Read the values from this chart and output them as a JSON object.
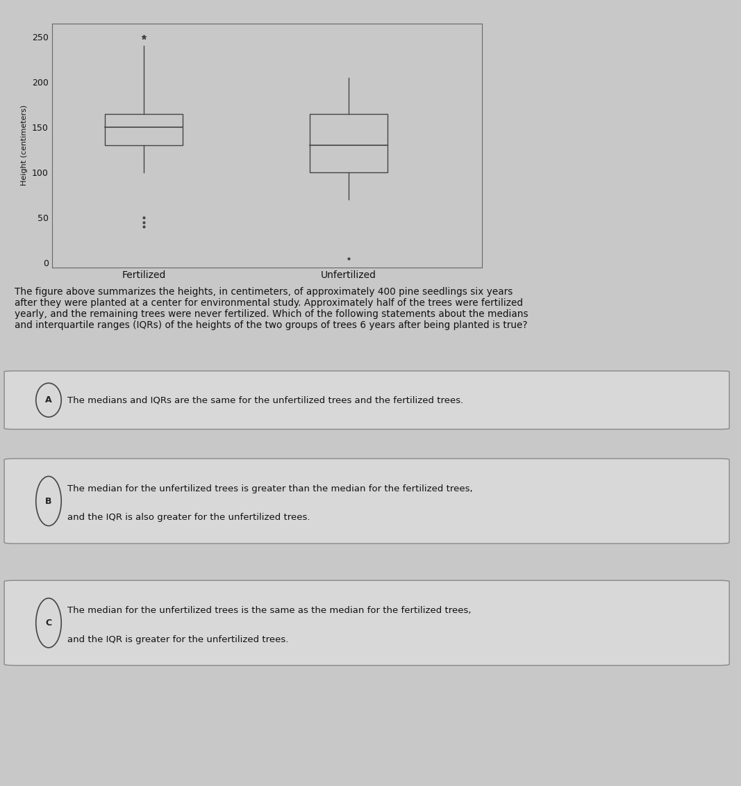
{
  "fertilized": {
    "whisker_low": 100,
    "q1": 130,
    "median": 150,
    "q3": 165,
    "whisker_high": 240,
    "outliers_high": [
      250
    ],
    "outliers_low": [
      40,
      45,
      50
    ]
  },
  "unfertilized": {
    "whisker_low": 70,
    "q1": 100,
    "median": 130,
    "q3": 165,
    "whisker_high": 205,
    "outliers_high": [],
    "outliers_low": [
      5
    ]
  },
  "ylim": [
    -5,
    265
  ],
  "yticks": [
    0,
    50,
    100,
    150,
    200,
    250
  ],
  "ylabel": "Height (centimeters)",
  "xlabel_fertilized": "Fertilized",
  "xlabel_unfertilized": "Unfertilized",
  "box_width": 0.38,
  "background_color": "#c8c8c8",
  "plot_background": "#c8c8c8",
  "box_facecolor": "#c8c8c8",
  "box_edge_color": "#444444",
  "text_color": "#111111",
  "question_text": "The figure above summarizes the heights, in centimeters, of approximately 400 pine seedlings six years\nafter they were planted at a center for environmental study. Approximately half of the trees were fertilized\nyearly, and the remaining trees were never fertilized. Which of the following statements about the medians\nand interquartile ranges (IQRs) of the heights of the two groups of trees 6 years after being planted is true?",
  "option_A_circle": "A",
  "option_A_text": "The medians and IQRs are the same for the unfertilized trees and the fertilized trees.",
  "option_B_circle": "B",
  "option_B_line1": "The median for the unfertilized trees is greater than the median for the fertilized trees,",
  "option_B_line2": "and the IQR is also greater for the unfertilized trees.",
  "option_C_circle": "C",
  "option_C_line1": "The median for the unfertilized trees is the same as the median for the fertilized trees,",
  "option_C_line2": "and the IQR is greater for the unfertilized trees.",
  "fig_width": 10.67,
  "fig_height": 11.31,
  "dpi": 100
}
